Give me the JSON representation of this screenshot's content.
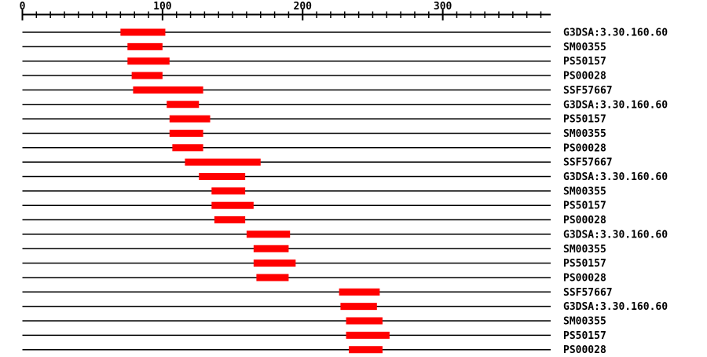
{
  "chart_data": {
    "type": "bar",
    "subtype": "horizontal-domain-span-track",
    "title": "",
    "xlabel": "",
    "ylabel": "",
    "xlim": [
      0,
      377
    ],
    "x_major_ticks": [
      0,
      100,
      200,
      300
    ],
    "x_minor_tick_step": 10,
    "x_minor_tick_max": 370,
    "grid": false,
    "legend": false,
    "rows": [
      {
        "label": "G3DSA:3.30.160.60",
        "start": 70,
        "end": 102
      },
      {
        "label": "SM00355",
        "start": 75,
        "end": 100
      },
      {
        "label": "PS50157",
        "start": 75,
        "end": 105
      },
      {
        "label": "PS00028",
        "start": 78,
        "end": 100
      },
      {
        "label": "SSF57667",
        "start": 79,
        "end": 129
      },
      {
        "label": "G3DSA:3.30.160.60",
        "start": 103,
        "end": 126
      },
      {
        "label": "PS50157",
        "start": 105,
        "end": 134
      },
      {
        "label": "SM00355",
        "start": 105,
        "end": 129
      },
      {
        "label": "PS00028",
        "start": 107,
        "end": 129
      },
      {
        "label": "SSF57667",
        "start": 116,
        "end": 170
      },
      {
        "label": "G3DSA:3.30.160.60",
        "start": 126,
        "end": 159
      },
      {
        "label": "SM00355",
        "start": 135,
        "end": 159
      },
      {
        "label": "PS50157",
        "start": 135,
        "end": 165
      },
      {
        "label": "PS00028",
        "start": 137,
        "end": 159
      },
      {
        "label": "G3DSA:3.30.160.60",
        "start": 160,
        "end": 191
      },
      {
        "label": "SM00355",
        "start": 165,
        "end": 190
      },
      {
        "label": "PS50157",
        "start": 165,
        "end": 195
      },
      {
        "label": "PS00028",
        "start": 167,
        "end": 190
      },
      {
        "label": "SSF57667",
        "start": 226,
        "end": 255
      },
      {
        "label": "G3DSA:3.30.160.60",
        "start": 227,
        "end": 253
      },
      {
        "label": "SM00355",
        "start": 231,
        "end": 257
      },
      {
        "label": "PS50157",
        "start": 231,
        "end": 262
      },
      {
        "label": "PS00028",
        "start": 233,
        "end": 257
      }
    ]
  },
  "colors": {
    "bar": "#ff0000",
    "line": "#000000",
    "text": "#000000",
    "background": "#ffffff"
  }
}
